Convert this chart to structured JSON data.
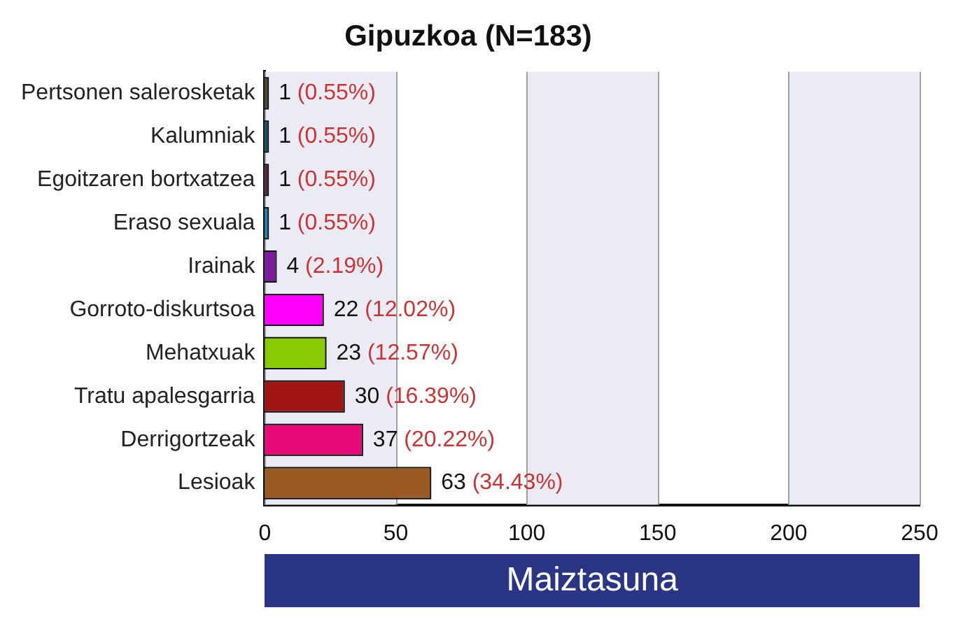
{
  "chart_data": {
    "type": "bar",
    "orientation": "horizontal",
    "title": "Gipuzkoa (N=183)",
    "xlabel": "Maiztasuna",
    "categories": [
      "Pertsonen salerosketak",
      "Kalumniak",
      "Egoitzaren bortxatzea",
      "Eraso sexuala",
      "Irainak",
      "Gorroto-diskurtsoa",
      "Mehatxuak",
      "Tratu apalesgarria",
      "Derrigortzeak",
      "Lesioak"
    ],
    "values": [
      1,
      1,
      1,
      1,
      4,
      22,
      23,
      30,
      37,
      63
    ],
    "colors": [
      "#4a4a28",
      "#0e5566",
      "#5e1f44",
      "#1a8ab8",
      "#7b1a9c",
      "#ff00ff",
      "#88cc00",
      "#a01414",
      "#e8087a",
      "#9a5a22"
    ],
    "value_labels": [
      "1 (0.55%)",
      "1 (0.55%)",
      "1 (0.55%)",
      "1 (0.55%)",
      "4 (2.19%)",
      "22 (12.02%)",
      "23 (12.57%)",
      "30 (16.39%)",
      "37 (20.22%)",
      "63 (34.43%)"
    ],
    "xlim": [
      0,
      250
    ],
    "xticks": [
      0,
      50,
      100,
      150,
      200,
      250
    ],
    "grid": "x",
    "bands": [
      {
        "axis": "x",
        "from": 0,
        "to": 50,
        "color": "#ebebf5"
      },
      {
        "axis": "x",
        "from": 100,
        "to": 150,
        "color": "#ebebf5"
      },
      {
        "axis": "x",
        "from": 200,
        "to": 250,
        "color": "#ebebf5"
      }
    ]
  }
}
